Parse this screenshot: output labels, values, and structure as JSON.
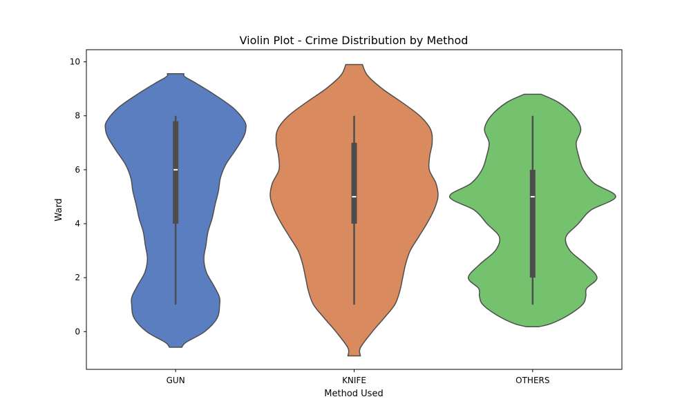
{
  "chart_data": {
    "type": "violin",
    "title": "Violin Plot - Crime Distribution by Method",
    "xlabel": "Method Used",
    "ylabel": "Ward",
    "categories": [
      "GUN",
      "KNIFE",
      "OTHERS"
    ],
    "ylim": [
      -1.4,
      10.45
    ],
    "yticks": [
      0,
      2,
      4,
      6,
      8,
      10
    ],
    "grid": false,
    "legend": "none",
    "colors": [
      "#5a7ec0",
      "#da8a5f",
      "#74c26e"
    ],
    "edge_color": "#4d4d4d",
    "series": [
      {
        "category": "GUN",
        "box": {
          "min": 1,
          "q1": 4,
          "median": 6,
          "q3": 7.8,
          "max": 8
        },
        "kde_range": [
          -0.58,
          9.56
        ],
        "kde_half_width": [
          [
            -0.58,
            0.0
          ],
          [
            -0.4,
            0.25
          ],
          [
            0.0,
            0.7
          ],
          [
            0.5,
            1.0
          ],
          [
            1.0,
            1.06
          ],
          [
            1.3,
            1.05
          ],
          [
            1.7,
            0.92
          ],
          [
            2.2,
            0.74
          ],
          [
            2.7,
            0.68
          ],
          [
            3.2,
            0.73
          ],
          [
            3.7,
            0.78
          ],
          [
            4.2,
            0.88
          ],
          [
            4.7,
            0.95
          ],
          [
            5.2,
            1.03
          ],
          [
            5.7,
            1.08
          ],
          [
            6.2,
            1.21
          ],
          [
            6.7,
            1.43
          ],
          [
            7.2,
            1.63
          ],
          [
            7.5,
            1.69
          ],
          [
            7.8,
            1.66
          ],
          [
            8.3,
            1.38
          ],
          [
            8.8,
            0.92
          ],
          [
            9.2,
            0.5
          ],
          [
            9.45,
            0.22
          ],
          [
            9.56,
            0.0
          ]
        ]
      },
      {
        "category": "KNIFE",
        "box": {
          "min": 1,
          "q1": 4,
          "median": 5,
          "q3": 7,
          "max": 8
        },
        "kde_range": [
          -0.9,
          9.9
        ],
        "kde_half_width": [
          [
            -0.9,
            0.0
          ],
          [
            -0.6,
            0.15
          ],
          [
            0.0,
            0.44
          ],
          [
            0.5,
            0.72
          ],
          [
            1.0,
            0.98
          ],
          [
            1.5,
            1.1
          ],
          [
            2.0,
            1.17
          ],
          [
            2.5,
            1.24
          ],
          [
            3.0,
            1.35
          ],
          [
            3.5,
            1.55
          ],
          [
            4.0,
            1.75
          ],
          [
            4.5,
            1.92
          ],
          [
            5.0,
            2.02
          ],
          [
            5.5,
            1.97
          ],
          [
            6.0,
            1.81
          ],
          [
            6.5,
            1.82
          ],
          [
            7.0,
            1.88
          ],
          [
            7.5,
            1.84
          ],
          [
            8.0,
            1.58
          ],
          [
            8.5,
            1.15
          ],
          [
            9.0,
            0.68
          ],
          [
            9.5,
            0.32
          ],
          [
            9.9,
            0.0
          ]
        ]
      },
      {
        "category": "OTHERS",
        "box": {
          "min": 1,
          "q1": 2,
          "median": 5,
          "q3": 6,
          "max": 8
        },
        "kde_range": [
          0.18,
          8.8
        ],
        "kde_half_width": [
          [
            0.18,
            0.0
          ],
          [
            0.3,
            0.45
          ],
          [
            0.6,
            0.85
          ],
          [
            1.0,
            1.2
          ],
          [
            1.3,
            1.28
          ],
          [
            1.6,
            1.3
          ],
          [
            2.0,
            1.55
          ],
          [
            2.5,
            1.27
          ],
          [
            3.0,
            0.9
          ],
          [
            3.5,
            0.8
          ],
          [
            4.0,
            1.1
          ],
          [
            4.5,
            1.4
          ],
          [
            5.0,
            2.0
          ],
          [
            5.5,
            1.48
          ],
          [
            6.0,
            1.22
          ],
          [
            6.5,
            1.11
          ],
          [
            7.0,
            1.05
          ],
          [
            7.5,
            1.16
          ],
          [
            8.0,
            1.0
          ],
          [
            8.5,
            0.62
          ],
          [
            8.8,
            0.0
          ]
        ]
      }
    ]
  }
}
